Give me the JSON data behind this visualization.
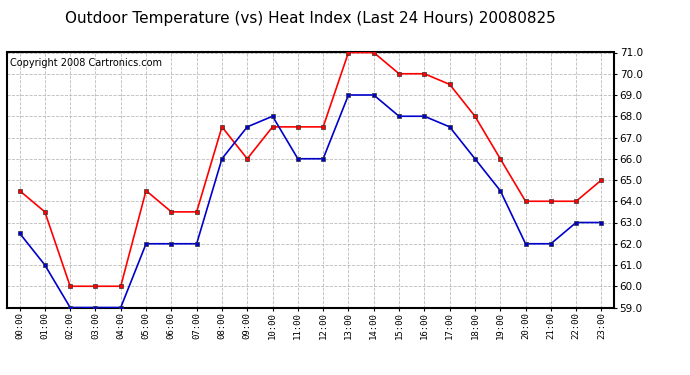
{
  "title": "Outdoor Temperature (vs) Heat Index (Last 24 Hours) 20080825",
  "copyright_text": "Copyright 2008 Cartronics.com",
  "hours": [
    "00:00",
    "01:00",
    "02:00",
    "03:00",
    "04:00",
    "05:00",
    "06:00",
    "07:00",
    "08:00",
    "09:00",
    "10:00",
    "11:00",
    "12:00",
    "13:00",
    "14:00",
    "15:00",
    "16:00",
    "17:00",
    "18:00",
    "19:00",
    "20:00",
    "21:00",
    "22:00",
    "23:00"
  ],
  "red_data": [
    64.5,
    63.5,
    60.0,
    60.0,
    60.0,
    64.5,
    63.5,
    63.5,
    67.5,
    66.0,
    67.5,
    67.5,
    67.5,
    71.0,
    71.0,
    70.0,
    70.0,
    69.5,
    68.0,
    66.0,
    64.0,
    64.0,
    64.0,
    65.0
  ],
  "blue_data": [
    62.5,
    61.0,
    59.0,
    59.0,
    59.0,
    62.0,
    62.0,
    62.0,
    66.0,
    67.5,
    68.0,
    66.0,
    66.0,
    69.0,
    69.0,
    68.0,
    68.0,
    67.5,
    66.0,
    64.5,
    62.0,
    62.0,
    63.0,
    63.0
  ],
  "ylim": [
    59.0,
    71.0
  ],
  "yticks": [
    59.0,
    60.0,
    61.0,
    62.0,
    63.0,
    64.0,
    65.0,
    66.0,
    67.0,
    68.0,
    69.0,
    70.0,
    71.0
  ],
  "red_color": "#ff0000",
  "blue_color": "#0000cc",
  "grid_color": "#bbbbbb",
  "bg_color": "#ffffff",
  "title_fontsize": 11,
  "copyright_fontsize": 7
}
